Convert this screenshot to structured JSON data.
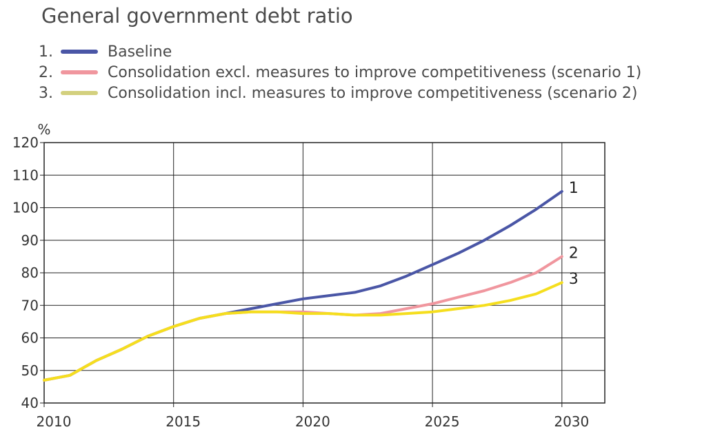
{
  "chart_data": {
    "type": "line",
    "title": "General government debt ratio",
    "ylabel": "%",
    "xlabel": "",
    "xlim": [
      2010,
      2030
    ],
    "ylim": [
      40,
      120
    ],
    "yticks": [
      40,
      50,
      60,
      70,
      80,
      90,
      100,
      110,
      120
    ],
    "xticks": [
      2010,
      2015,
      2020,
      2025,
      2030
    ],
    "grid": true,
    "legend_position": "top",
    "series": [
      {
        "number": "1.",
        "name": "Baseline",
        "end_label": "1",
        "color": "#4a56a6",
        "x": [
          2010,
          2011,
          2012,
          2013,
          2014,
          2015,
          2016,
          2017,
          2018,
          2019,
          2020,
          2021,
          2022,
          2023,
          2024,
          2025,
          2026,
          2027,
          2028,
          2029,
          2030
        ],
        "values": [
          47,
          48.5,
          53,
          56.5,
          60.5,
          63.5,
          66,
          67.5,
          69,
          70.5,
          72,
          73,
          74,
          76,
          79,
          82.5,
          86,
          90,
          94.5,
          99.5,
          105
        ]
      },
      {
        "number": "2.",
        "name": "Consolidation excl. measures to improve competitiveness (scenario 1)",
        "end_label": "2",
        "color": "#f0969e",
        "x": [
          2010,
          2011,
          2012,
          2013,
          2014,
          2015,
          2016,
          2017,
          2018,
          2019,
          2020,
          2021,
          2022,
          2023,
          2024,
          2025,
          2026,
          2027,
          2028,
          2029,
          2030
        ],
        "values": [
          47,
          48.5,
          53,
          56.5,
          60.5,
          63.5,
          66,
          67.5,
          68,
          68,
          68,
          67.5,
          67,
          67.5,
          69,
          70.5,
          72.5,
          74.5,
          77,
          80,
          85
        ]
      },
      {
        "number": "3.",
        "name": "Consolidation incl. measures to improve competitiveness (scenario 2)",
        "end_label": "3",
        "color": "#f5de1e",
        "legend_color": "#d3d07e",
        "x": [
          2010,
          2011,
          2012,
          2013,
          2014,
          2015,
          2016,
          2017,
          2018,
          2019,
          2020,
          2021,
          2022,
          2023,
          2024,
          2025,
          2026,
          2027,
          2028,
          2029,
          2030
        ],
        "values": [
          47,
          48.5,
          53,
          56.5,
          60.5,
          63.5,
          66,
          67.5,
          68,
          68,
          67.5,
          67.5,
          67,
          67,
          67.5,
          68,
          69,
          70,
          71.5,
          73.5,
          77
        ]
      }
    ]
  }
}
